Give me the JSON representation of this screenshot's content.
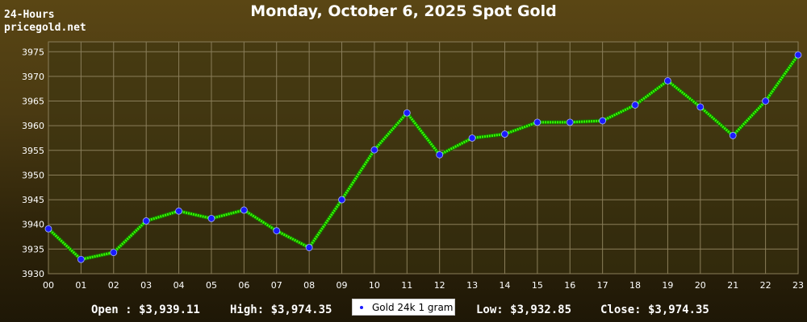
{
  "brand": {
    "top_label": "24-Hours",
    "site": "pricegold.net"
  },
  "chart_data": {
    "type": "line",
    "title": "Monday, October 6, 2025 Spot Gold",
    "xlabel": "",
    "ylabel": "",
    "categories": [
      "00",
      "01",
      "02",
      "03",
      "04",
      "05",
      "06",
      "07",
      "08",
      "09",
      "10",
      "11",
      "12",
      "13",
      "14",
      "15",
      "16",
      "17",
      "18",
      "19",
      "20",
      "21",
      "22",
      "23"
    ],
    "series": [
      {
        "name": "Gold 24k 1 gram",
        "values": [
          3939.1,
          3932.9,
          3934.3,
          3940.7,
          3942.7,
          3941.2,
          3942.9,
          3938.7,
          3935.3,
          3945.0,
          3955.1,
          3962.6,
          3954.1,
          3957.5,
          3958.3,
          3960.7,
          3960.7,
          3961.0,
          3964.2,
          3969.1,
          3963.8,
          3958.0,
          3965.0,
          3974.35
        ],
        "line_color": "#33ff00",
        "marker_color": "#1a1aff"
      }
    ],
    "yticks": [
      3930,
      3935,
      3940,
      3945,
      3950,
      3955,
      3960,
      3965,
      3970,
      3975
    ],
    "ylim": [
      3930,
      3977
    ],
    "grid": true,
    "legend": "bottom-center"
  },
  "stats": {
    "open": "Open : $3,939.11",
    "high": "High: $3,974.35",
    "low": "Low: $3,932.85",
    "close": "Close: $3,974.35"
  },
  "colors": {
    "plot_background": "#3d3410",
    "grid": "#8a7e5a",
    "axis_text": "#ffffff"
  }
}
